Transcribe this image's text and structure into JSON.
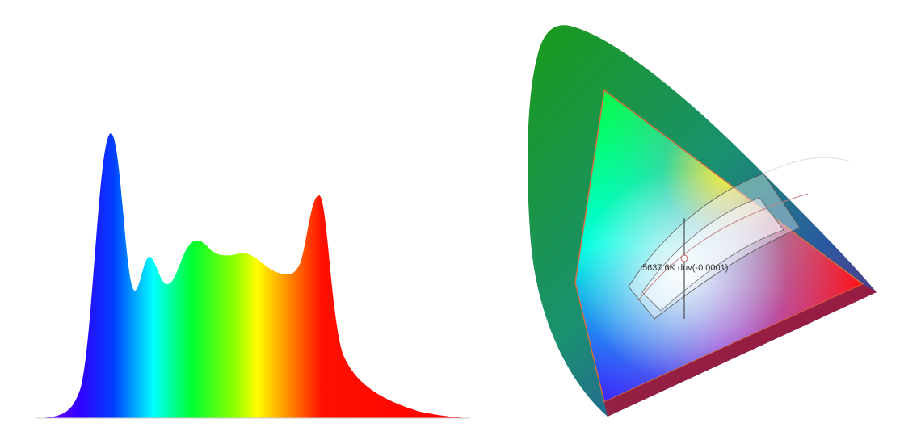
{
  "annotation": "5637.6K duv(-0.0001)"
}
